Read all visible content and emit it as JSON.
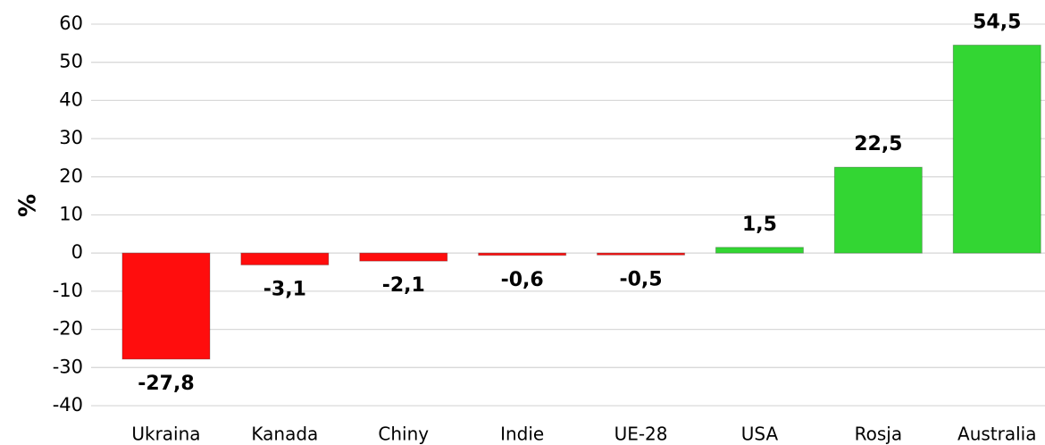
{
  "chart_data": {
    "type": "bar",
    "y_label": "%",
    "categories": [
      "Ukraina",
      "Kanada",
      "Chiny",
      "Indie",
      "UE-28",
      "USA",
      "Rosja",
      "Australia"
    ],
    "values": [
      -27.8,
      -3.1,
      -2.1,
      -0.6,
      -0.5,
      1.5,
      22.5,
      54.5
    ],
    "value_labels": [
      "-27,8",
      "-3,1",
      "-2,1",
      "-0,6",
      "-0,5",
      "1,5",
      "22,5",
      "54,5"
    ],
    "color_positive": "#33d633",
    "color_negative": "#ff0d0d",
    "ylim": [
      -40,
      60
    ],
    "yticks": [
      -40,
      -30,
      -20,
      -10,
      0,
      10,
      20,
      30,
      40,
      50,
      60
    ],
    "grid": true
  }
}
